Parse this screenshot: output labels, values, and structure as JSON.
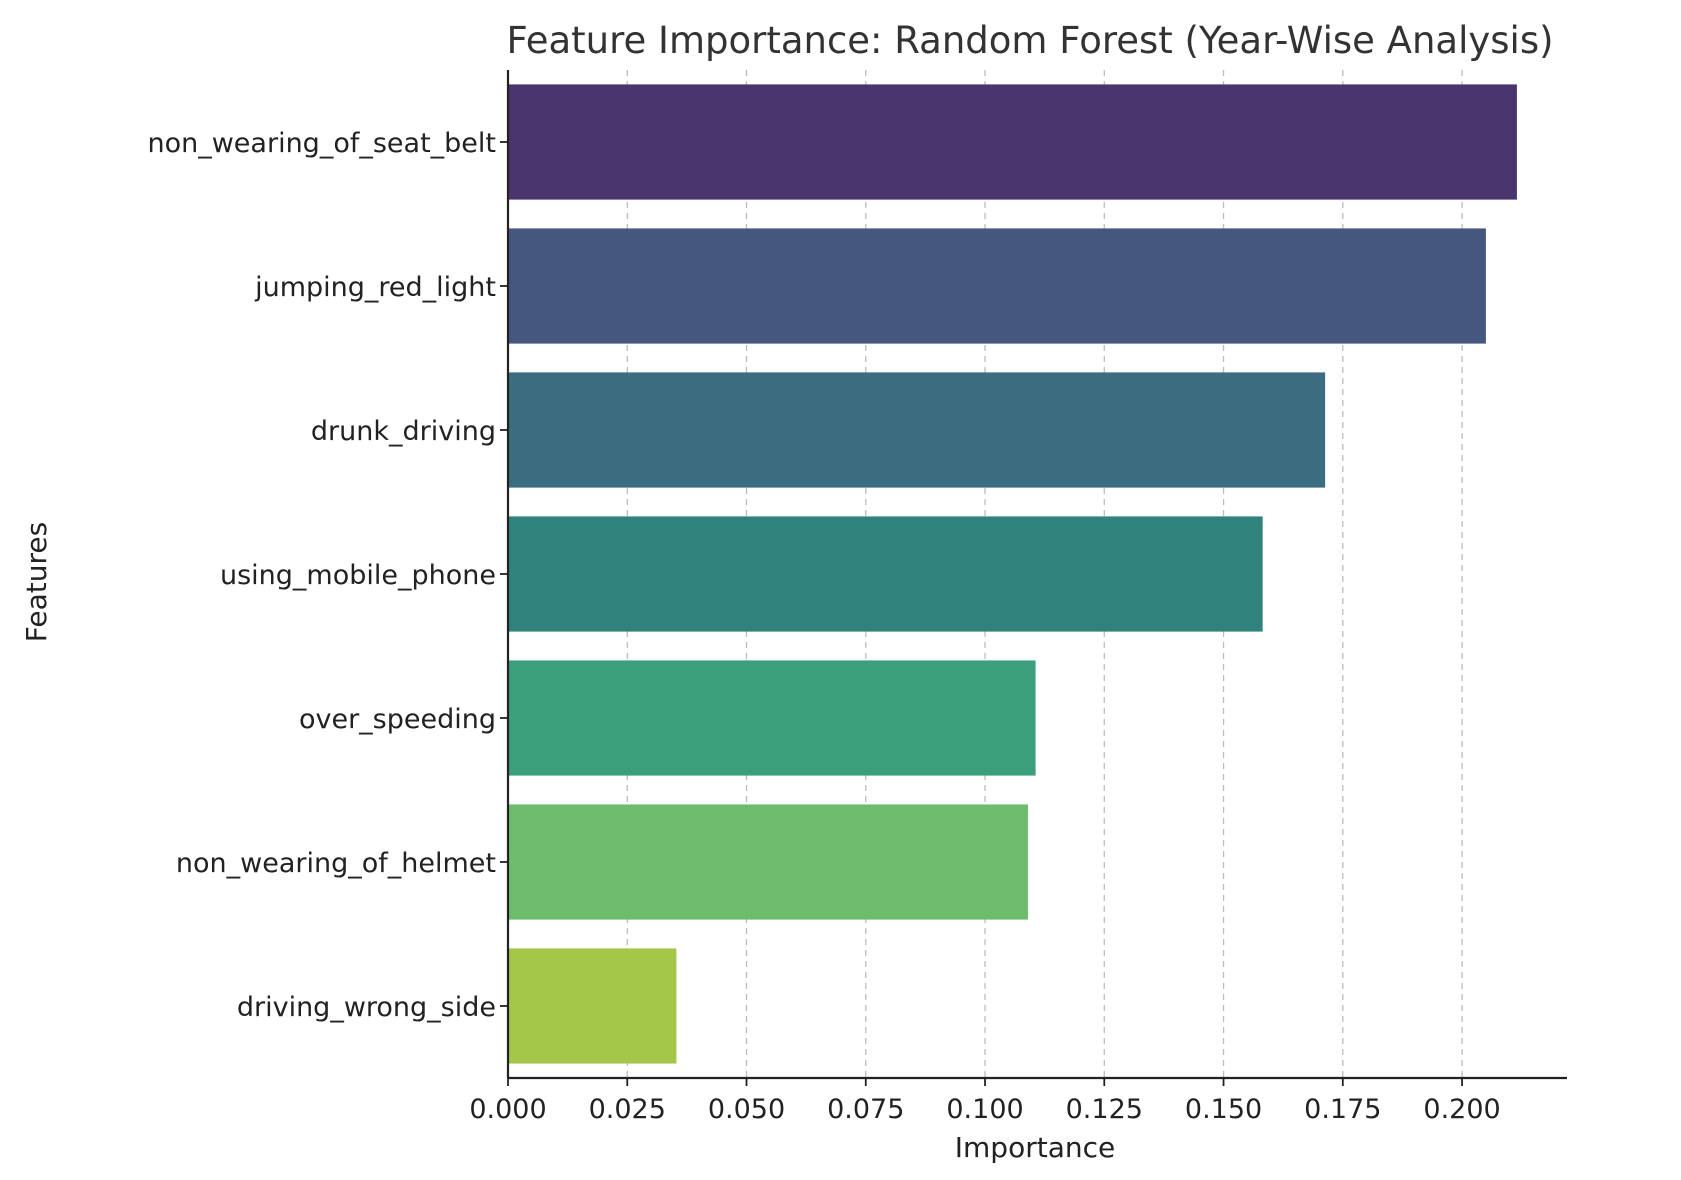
{
  "chart_data": {
    "type": "bar",
    "orientation": "horizontal",
    "title": "Feature Importance: Random Forest (Year-Wise Analysis)",
    "xlabel": "Importance",
    "ylabel": "Features",
    "categories": [
      "non_wearing_of_seat_belt",
      "jumping_red_light",
      "drunk_driving",
      "using_mobile_phone",
      "over_speeding",
      "non_wearing_of_helmet",
      "driving_wrong_side"
    ],
    "values": [
      0.2115,
      0.205,
      0.1713,
      0.1582,
      0.1106,
      0.109,
      0.0353
    ],
    "colors": [
      "#4a346e",
      "#46577f",
      "#3b6c80",
      "#2f837c",
      "#3c9f7b",
      "#6dbc6d",
      "#a4c74a"
    ],
    "xlim": [
      0,
      0.222
    ],
    "xticks": [
      "0.000",
      "0.025",
      "0.050",
      "0.075",
      "0.100",
      "0.125",
      "0.150",
      "0.175",
      "0.200"
    ],
    "grid": "x-dashed",
    "legend": "none"
  }
}
